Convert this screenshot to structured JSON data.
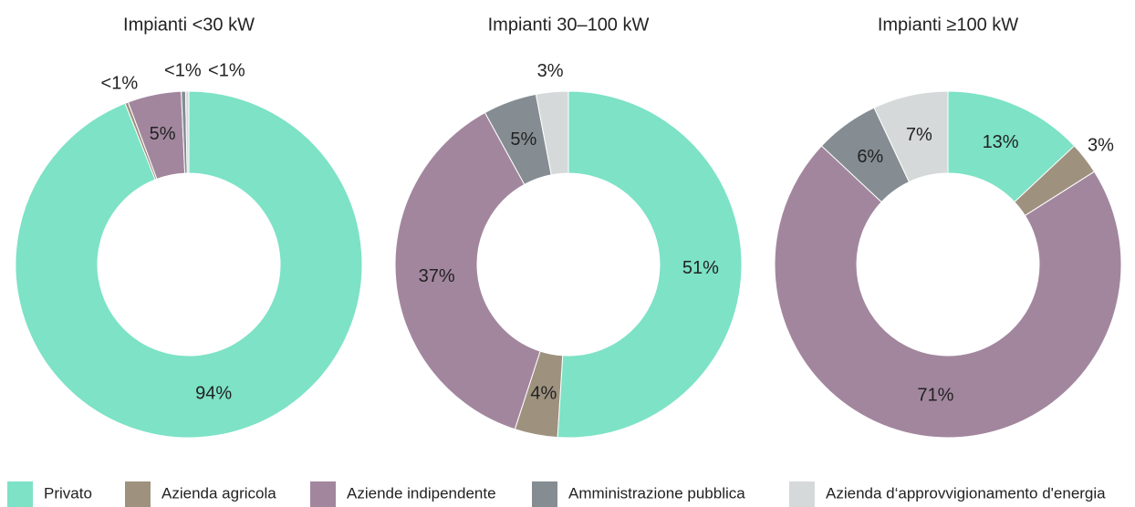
{
  "chart_data": [
    {
      "type": "pie",
      "title": "Impianti  <30 kW",
      "values": [
        94,
        0.3,
        5,
        0.4,
        0.3
      ],
      "value_labels": [
        "94%",
        "<1%",
        "5%",
        "<1%",
        "<1%"
      ]
    },
    {
      "type": "pie",
      "title": "Impianti  30–100 kW",
      "values": [
        51,
        4,
        37,
        5,
        3
      ],
      "value_labels": [
        "51%",
        "4%",
        "37%",
        "5%",
        "3%"
      ]
    },
    {
      "type": "pie",
      "title": "Impianti  ≥100 kW",
      "values": [
        13,
        3,
        71,
        6,
        7
      ],
      "value_labels": [
        "13%",
        "3%",
        "71%",
        "6%",
        "7%"
      ]
    }
  ],
  "legend": {
    "labels": [
      "Privato",
      "Azienda agricola",
      "Aziende indipendente",
      "Amministrazione pubblica",
      "Azienda d‘approvvigionamento d'energia"
    ],
    "colors": [
      "#7de2c6",
      "#9e927f",
      "#a2869e",
      "#858d93",
      "#d6d9da"
    ]
  }
}
